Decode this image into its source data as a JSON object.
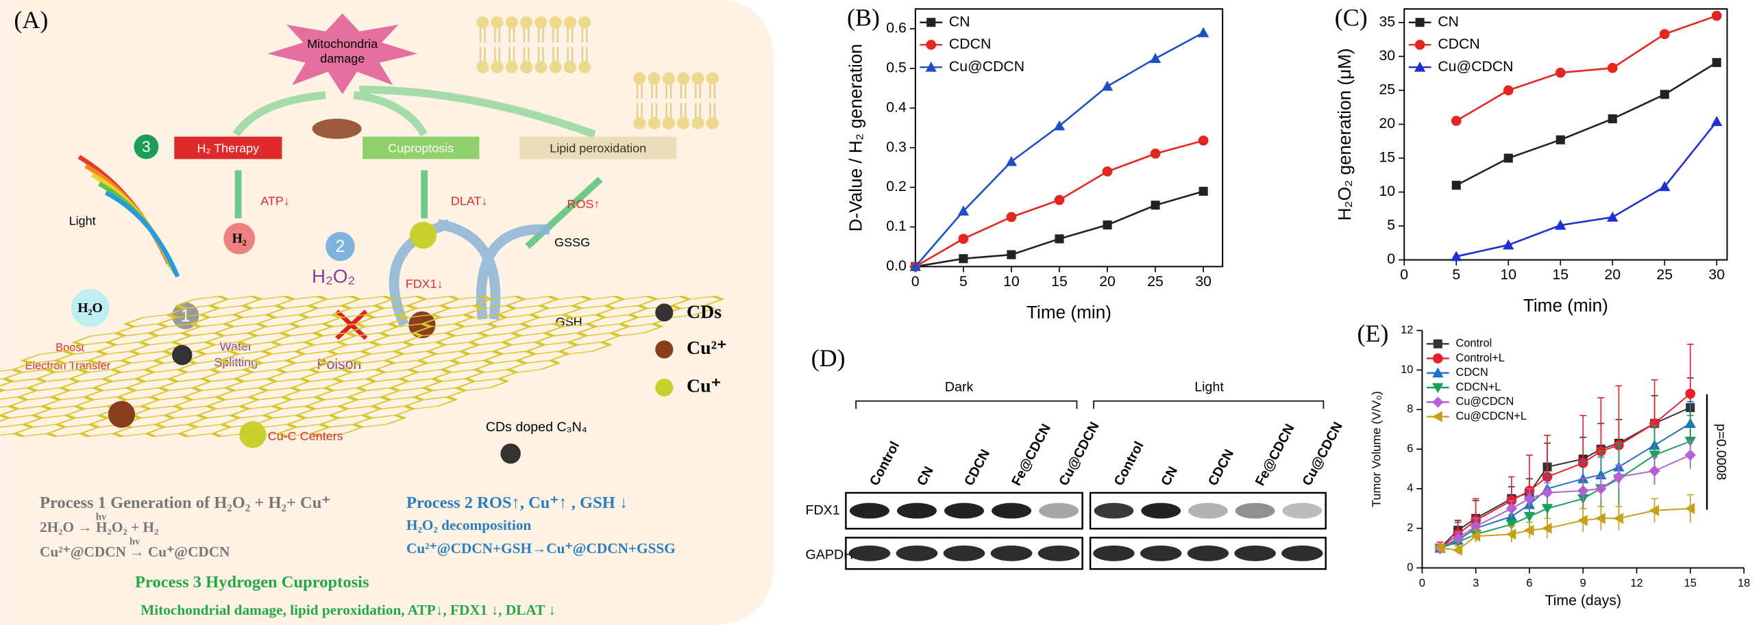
{
  "panel_a": {
    "label": "(A)",
    "mitochondria": [
      "Mitochondria",
      "damage"
    ],
    "step3": "3",
    "h2_therapy": "H₂ Therapy",
    "cuproptosis": "Cuproptosis",
    "lipid": "Lipid peroxidation",
    "atp": "ATP↓",
    "dlat": "DLAT↓",
    "ros": "ROS↑",
    "h2": "H₂",
    "step2": "2",
    "h2o2": "H₂O₂",
    "fdx1": "FDX1↓",
    "gssg": "GSSG",
    "gsh": "GSH",
    "light": "Light",
    "h2o": "H₂O",
    "step1": "1",
    "boost": [
      "Boost",
      "Electron Transfer"
    ],
    "water": [
      "Water",
      "Splitting"
    ],
    "poison": "Poison",
    "cuc": "Cu-C Centers",
    "doped": "CDs doped C₃N₄",
    "legend": [
      "CDs",
      "Cu²⁺",
      "Cu⁺"
    ],
    "process1": {
      "title": "Process 1 Generation of H₂O₂ + H₂+ Cu⁺",
      "items": [
        "2H₂O → H₂O₂ + H₂",
        "Cu²⁺@CDCN → Cu⁺@CDCN"
      ]
    },
    "hv": "hv",
    "process2": {
      "title": "Process 2  ROS↑, Cu⁺↑ , GSH ↓",
      "items": [
        "H₂O₂ decomposition",
        "Cu²⁺@CDCN+GSH→Cu⁺@CDCN+GSSG"
      ]
    },
    "process3": {
      "title": "Process 3 Hydrogen Cuproptosis",
      "items": [
        "Mitochondrial damage, lipid peroxidation, ATP↓, FDX1 ↓, DLAT ↓"
      ]
    }
  },
  "panel_d": {
    "label": "(D)",
    "groups": [
      "Dark",
      "Light"
    ],
    "lanes": [
      "Control",
      "CN",
      "CDCN",
      "Fe@CDCN",
      "Cu@CDCN"
    ],
    "rows": [
      "FDX1",
      "GAPDH"
    ]
  },
  "chart_data": [
    {
      "type": "line",
      "panel_label": "(B)",
      "xlabel": "Time (min)",
      "ylabel": "D-Value / H₂ generation",
      "x": [
        0,
        5,
        10,
        15,
        20,
        25,
        30
      ],
      "xlim": [
        0,
        32
      ],
      "ylim": [
        0,
        0.65
      ],
      "xticks": [
        0,
        5,
        10,
        15,
        20,
        25,
        30
      ],
      "yticks": [
        {
          "value": 0,
          "label": "0.0"
        },
        0.1,
        0.2,
        0.3,
        0.4,
        0.5,
        0.6
      ],
      "legend": "upper left",
      "series": [
        {
          "name": "CN",
          "color": "#222222",
          "marker": "square",
          "values": [
            0,
            0.02,
            0.03,
            0.07,
            0.105,
            0.155,
            0.19
          ]
        },
        {
          "name": "CDCN",
          "color": "#e52620",
          "marker": "circle",
          "values": [
            0,
            0.07,
            0.125,
            0.168,
            0.24,
            0.285,
            0.318
          ]
        },
        {
          "name": "Cu@CDCN",
          "color": "#1f4fc4",
          "marker": "triangle",
          "values": [
            0,
            0.14,
            0.265,
            0.355,
            0.455,
            0.525,
            0.59
          ]
        }
      ]
    },
    {
      "type": "line",
      "panel_label": "(C)",
      "xlabel": "Time (min)",
      "ylabel": "H₂O₂ generation (μM)",
      "x": [
        5,
        10,
        15,
        20,
        25,
        30
      ],
      "xlim": [
        0,
        31
      ],
      "ylim": [
        0,
        37
      ],
      "xticks": [
        0,
        5,
        10,
        15,
        20,
        25,
        30
      ],
      "yticks": [
        0,
        5,
        10,
        15,
        20,
        25,
        30,
        35
      ],
      "legend": "upper left",
      "series": [
        {
          "name": "CN",
          "color": "#222222",
          "marker": "square",
          "values": [
            11,
            15,
            17.7,
            20.8,
            24.4,
            29.1
          ]
        },
        {
          "name": "CDCN",
          "color": "#e52620",
          "marker": "circle",
          "values": [
            20.5,
            25,
            27.6,
            28.3,
            33.3,
            36
          ]
        },
        {
          "name": "Cu@CDCN",
          "color": "#1f2fd4",
          "marker": "triangle",
          "values": [
            0.5,
            2.2,
            5.1,
            6.3,
            10.8,
            20.4
          ]
        }
      ]
    },
    {
      "type": "line",
      "panel_label": "(E)",
      "xlabel": "Time (days)",
      "ylabel": "Tumor Volume (V/V₀)",
      "annotation": "p=0.0008",
      "x": [
        1,
        2,
        3,
        5,
        6,
        7,
        9,
        10,
        11,
        13,
        15
      ],
      "xlim": [
        0,
        18
      ],
      "ylim": [
        0,
        12
      ],
      "xticks": [
        0,
        3,
        6,
        9,
        12,
        15,
        18
      ],
      "yticks": [
        0,
        2,
        4,
        6,
        8,
        10,
        12
      ],
      "legend": "upper left",
      "series": [
        {
          "name": "Control",
          "color": "#333333",
          "marker": "square",
          "values": [
            1,
            1.9,
            2.5,
            3.5,
            3.8,
            5.1,
            5.5,
            6,
            6.3,
            7.3,
            8.1
          ],
          "errors": [
            0.2,
            0.5,
            0.9,
            0.6,
            0.7,
            1.2,
            1.1,
            1.3,
            1.2,
            1.4,
            1.5
          ]
        },
        {
          "name": "Control+L",
          "color": "#e8202a",
          "marker": "circle",
          "values": [
            1,
            1.7,
            2.4,
            3.4,
            3.9,
            4.6,
            5.3,
            5.9,
            6.2,
            7.3,
            8.8
          ],
          "errors": [
            0.3,
            0.6,
            1.1,
            1.2,
            1.8,
            2.1,
            2.4,
            2.7,
            3,
            2.2,
            2.5
          ]
        },
        {
          "name": "CDCN",
          "color": "#1f6fc4",
          "marker": "triangle",
          "values": [
            1,
            1.4,
            2,
            2.6,
            3.2,
            4,
            4.5,
            4.7,
            5.1,
            6.2,
            7.3
          ],
          "errors": [
            0.2,
            0.3,
            0.4,
            0.5,
            0.6,
            0.7,
            0.8,
            0.9,
            1,
            1,
            1.1
          ]
        },
        {
          "name": "CDCN+L",
          "color": "#1aa05a",
          "marker": "triangle-down",
          "values": [
            1,
            1.3,
            1.7,
            2.2,
            2.6,
            3,
            3.5,
            4,
            4.5,
            5.7,
            6.4
          ],
          "errors": [
            0.2,
            0.3,
            0.4,
            0.5,
            0.6,
            0.7,
            0.8,
            1.9,
            1.8,
            1.5,
            1.3
          ]
        },
        {
          "name": "Cu@CDCN",
          "color": "#b45fd6",
          "marker": "diamond",
          "values": [
            1,
            1.5,
            2.1,
            3,
            3.5,
            3.8,
            3.9,
            4,
            4.6,
            4.9,
            5.7
          ],
          "errors": [
            0.2,
            0.3,
            0.4,
            0.4,
            0.5,
            0.5,
            0.6,
            0.6,
            0.6,
            0.7,
            0.7
          ]
        },
        {
          "name": "Cu@CDCN+L",
          "color": "#c8a018",
          "marker": "triangle-left",
          "values": [
            1,
            0.9,
            1.6,
            1.7,
            1.9,
            2,
            2.4,
            2.5,
            2.5,
            2.9,
            3
          ],
          "errors": [
            0.2,
            0.2,
            0.3,
            0.4,
            0.4,
            0.5,
            0.6,
            0.6,
            0.6,
            0.6,
            0.7
          ]
        }
      ]
    }
  ]
}
